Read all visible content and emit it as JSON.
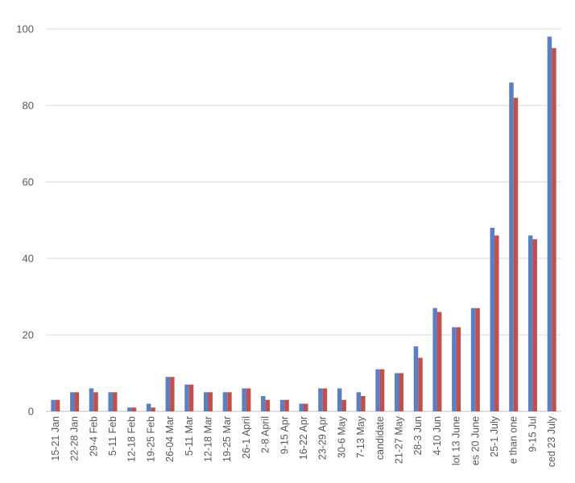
{
  "chart_data": {
    "type": "bar",
    "title": "",
    "xlabel": "",
    "ylabel": "",
    "ylim": [
      0,
      100
    ],
    "yticks": [
      0,
      20,
      40,
      60,
      80,
      100
    ],
    "grid": true,
    "legend": "none",
    "colors": [
      "#5b7fc1",
      "#c0504d"
    ],
    "categories": [
      "15-21 Jan",
      "22-28 Jan",
      "29-4 Feb",
      "5-11 Feb",
      "12-18 Feb",
      "19-25 Feb",
      "26-04 Mar",
      "5-11 Mar",
      "12-18 Mar",
      "19-25 Mar",
      "26-1 April",
      "2-8 April",
      "9-15 Apr",
      "16-22 Apr",
      "23-29 Apr",
      "30-6 May",
      "7-13 May",
      "candidate",
      "21-27 May",
      "28-3 Jun",
      "4-10 Jun",
      "lot 13 June",
      "es 20 June",
      "25-1 July",
      "e than one",
      "9-15 Jul",
      "ced 23 July"
    ],
    "series": [
      {
        "values": [
          3,
          5,
          6,
          5,
          1,
          2,
          9,
          7,
          5,
          5,
          6,
          4,
          3,
          2,
          6,
          6,
          5,
          11,
          10,
          17,
          27,
          22,
          27,
          48,
          86,
          46,
          98
        ]
      },
      {
        "values": [
          3,
          5,
          5,
          5,
          1,
          1,
          9,
          7,
          5,
          5,
          6,
          3,
          3,
          2,
          6,
          3,
          4,
          11,
          10,
          14,
          26,
          22,
          27,
          46,
          82,
          45,
          95
        ]
      }
    ]
  }
}
